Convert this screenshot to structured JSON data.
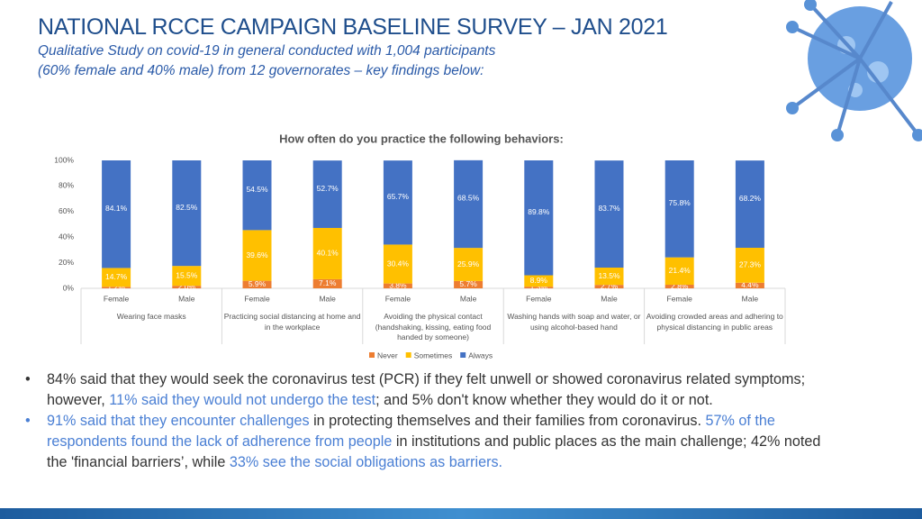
{
  "header": {
    "title": "NATIONAL RCCE CAMPAIGN BASELINE SURVEY – JAN 2021",
    "subtitle": [
      "Qualitative Study on covid-19 in general conducted with 1,004 participants",
      "(60% female and 40% male) from 12 governorates  – key findings below:"
    ]
  },
  "chart_data": {
    "type": "stacked_bar",
    "title": "How often do you practice the following behaviors:",
    "categories": [
      "Female",
      "Male",
      "Female",
      "Male",
      "Female",
      "Male",
      "Female",
      "Male",
      "Female",
      "Male"
    ],
    "groups": [
      "Wearing face masks",
      "Practicing social distancing at home and in the workplace",
      "Avoiding the physical contact (handshaking, kissing, eating food handed by someone)",
      "Washing hands with soap and water, or using alcohol-based hand",
      "Avoiding crowded areas and adhering to physical distancing in public areas"
    ],
    "series": [
      {
        "name": "Never",
        "color": "#ed7d31",
        "values": [
          1.2,
          2.0,
          5.9,
          7.1,
          3.8,
          5.7,
          1.3,
          2.7,
          2.8,
          4.4
        ],
        "value_labels": [
          "1.2%",
          "2.0%",
          "5.9%",
          "7.1%",
          "3.8%",
          "5.7%",
          "1.3%",
          "2.7%",
          "2.8%",
          "4.4%"
        ]
      },
      {
        "name": "Sometimes",
        "color": "#ffc000",
        "values": [
          14.7,
          15.5,
          39.6,
          40.1,
          30.4,
          25.9,
          8.9,
          13.5,
          21.4,
          27.3
        ],
        "value_labels": [
          "14.7%",
          "15.5%",
          "39.6%",
          "40.1%",
          "30.4%",
          "25.9%",
          "8.9%",
          "13.5%",
          "21.4%",
          "27.3%"
        ]
      },
      {
        "name": "Always",
        "color": "#4472c4",
        "values": [
          84.1,
          82.5,
          54.5,
          52.7,
          65.7,
          68.5,
          89.8,
          83.7,
          75.8,
          68.2
        ],
        "value_labels": [
          "84.1%",
          "82.5%",
          "54.5%",
          "52.7%",
          "65.7%",
          "68.5%",
          "89.8%",
          "83.7%",
          "75.8%",
          "68.2%"
        ]
      }
    ],
    "ylim": [
      0,
      100
    ],
    "yticks": [
      {
        "value": 0,
        "label": "0%"
      },
      {
        "value": 20,
        "label": "20%"
      },
      {
        "value": 40,
        "label": "40%"
      },
      {
        "value": 60,
        "label": "60%"
      },
      {
        "value": 80,
        "label": "80%"
      },
      {
        "value": 100,
        "label": "100%"
      }
    ],
    "legend": "bottom"
  },
  "bullets": [
    [
      {
        "text": "84% said that they would seek the coronavirus test (PCR) if they felt unwell or showed coronavirus related symptoms; however, "
      },
      {
        "text": "11% said they would not undergo the test",
        "color": "#4a7fd4"
      },
      {
        "text": "; and 5% don't know whether they would do it or not."
      }
    ],
    [
      {
        "text": "91% said that they encounter challenges",
        "color": "#4a7fd4"
      },
      {
        "text": " in protecting themselves and their families from coronavirus. "
      },
      {
        "text": "57% of the respondents found the lack of adherence from people",
        "color": "#4a7fd4"
      },
      {
        "text": " in institutions and public places as the main challenge; 42% noted the 'financial barriers’, while "
      },
      {
        "text": "33% see the social obligations as barriers.",
        "color": "#4a7fd4"
      }
    ]
  ]
}
